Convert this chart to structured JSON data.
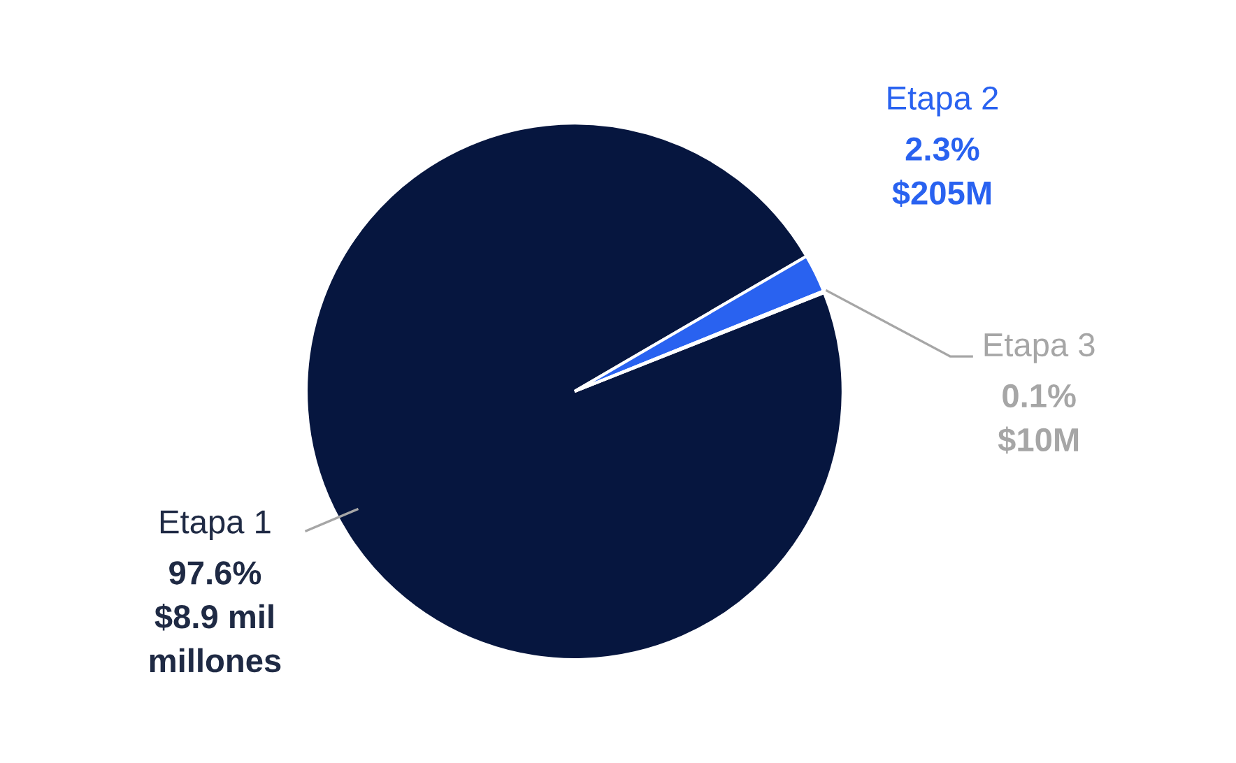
{
  "chart_data": {
    "type": "pie",
    "categories": [
      "Etapa 1",
      "Etapa 2",
      "Etapa 3"
    ],
    "values": [
      97.6,
      2.3,
      0.1
    ],
    "value_labels": [
      "97.6%\n$8.9 mil\nmillones",
      "2.3%\n$205M",
      "0.1%\n$10M"
    ],
    "colors": [
      "#06163f",
      "#2962f0",
      "#a6a6a6"
    ],
    "legend": false
  }
}
